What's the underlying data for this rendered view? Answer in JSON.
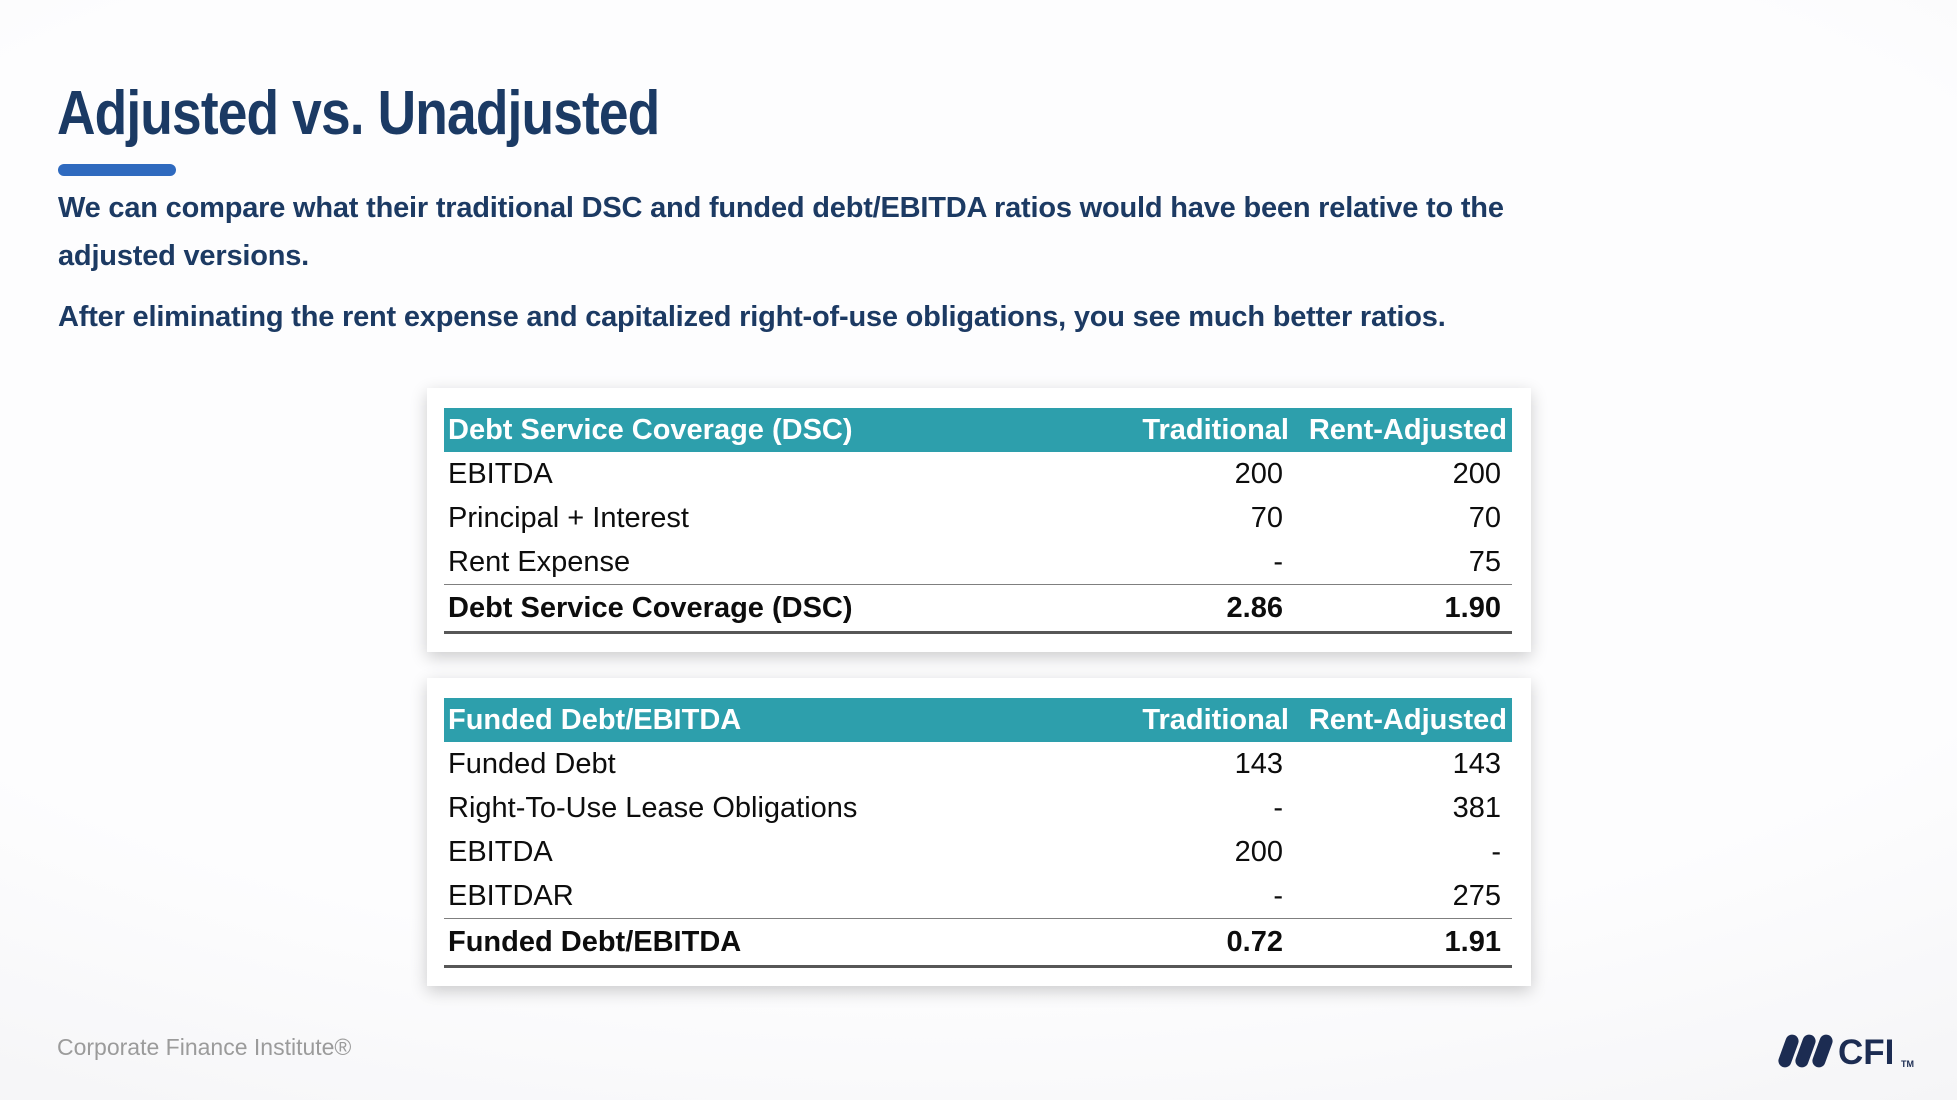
{
  "slide": {
    "title": "Adjusted vs. Unadjusted",
    "paragraphs": {
      "p1": "We can compare what their traditional DSC and funded debt/EBITDA ratios would have been relative to the\nadjusted versions.",
      "p2": "After eliminating the rent expense and capitalized right-of-use obligations, you see much better ratios."
    },
    "footer_text": "Corporate Finance Institute®",
    "logo": {
      "text": "CFI",
      "tm": "TM"
    }
  },
  "colors": {
    "accent_teal": "#2D9FAC",
    "navy_text": "#1C3A63",
    "title_navy": "#1B3A64",
    "underline_blue": "#2F6ABF",
    "logo_navy": "#1C2C52",
    "footer_gray": "#9B9B9B",
    "thin_rule_gray": "#7f7f7f",
    "total_rule_gray": "#575757"
  },
  "tables": [
    {
      "header": [
        "Debt Service Coverage (DSC)",
        "Traditional",
        "Rent-Adjusted"
      ],
      "rows": [
        [
          "EBITDA",
          "200",
          "200"
        ],
        [
          "Principal + Interest",
          "70",
          "70"
        ],
        [
          "Rent Expense",
          "-",
          "75"
        ]
      ],
      "total": [
        "Debt Service Coverage (DSC)",
        "2.86",
        "1.90"
      ]
    },
    {
      "header": [
        "Funded Debt/EBITDA",
        "Traditional",
        "Rent-Adjusted"
      ],
      "rows": [
        [
          "Funded Debt",
          "143",
          "143"
        ],
        [
          "Right-To-Use Lease Obligations",
          "-",
          "381"
        ],
        [
          "EBITDA",
          "200",
          "-"
        ],
        [
          "EBITDAR",
          "-",
          "275"
        ]
      ],
      "total": [
        "Funded Debt/EBITDA",
        "0.72",
        "1.91"
      ]
    }
  ]
}
